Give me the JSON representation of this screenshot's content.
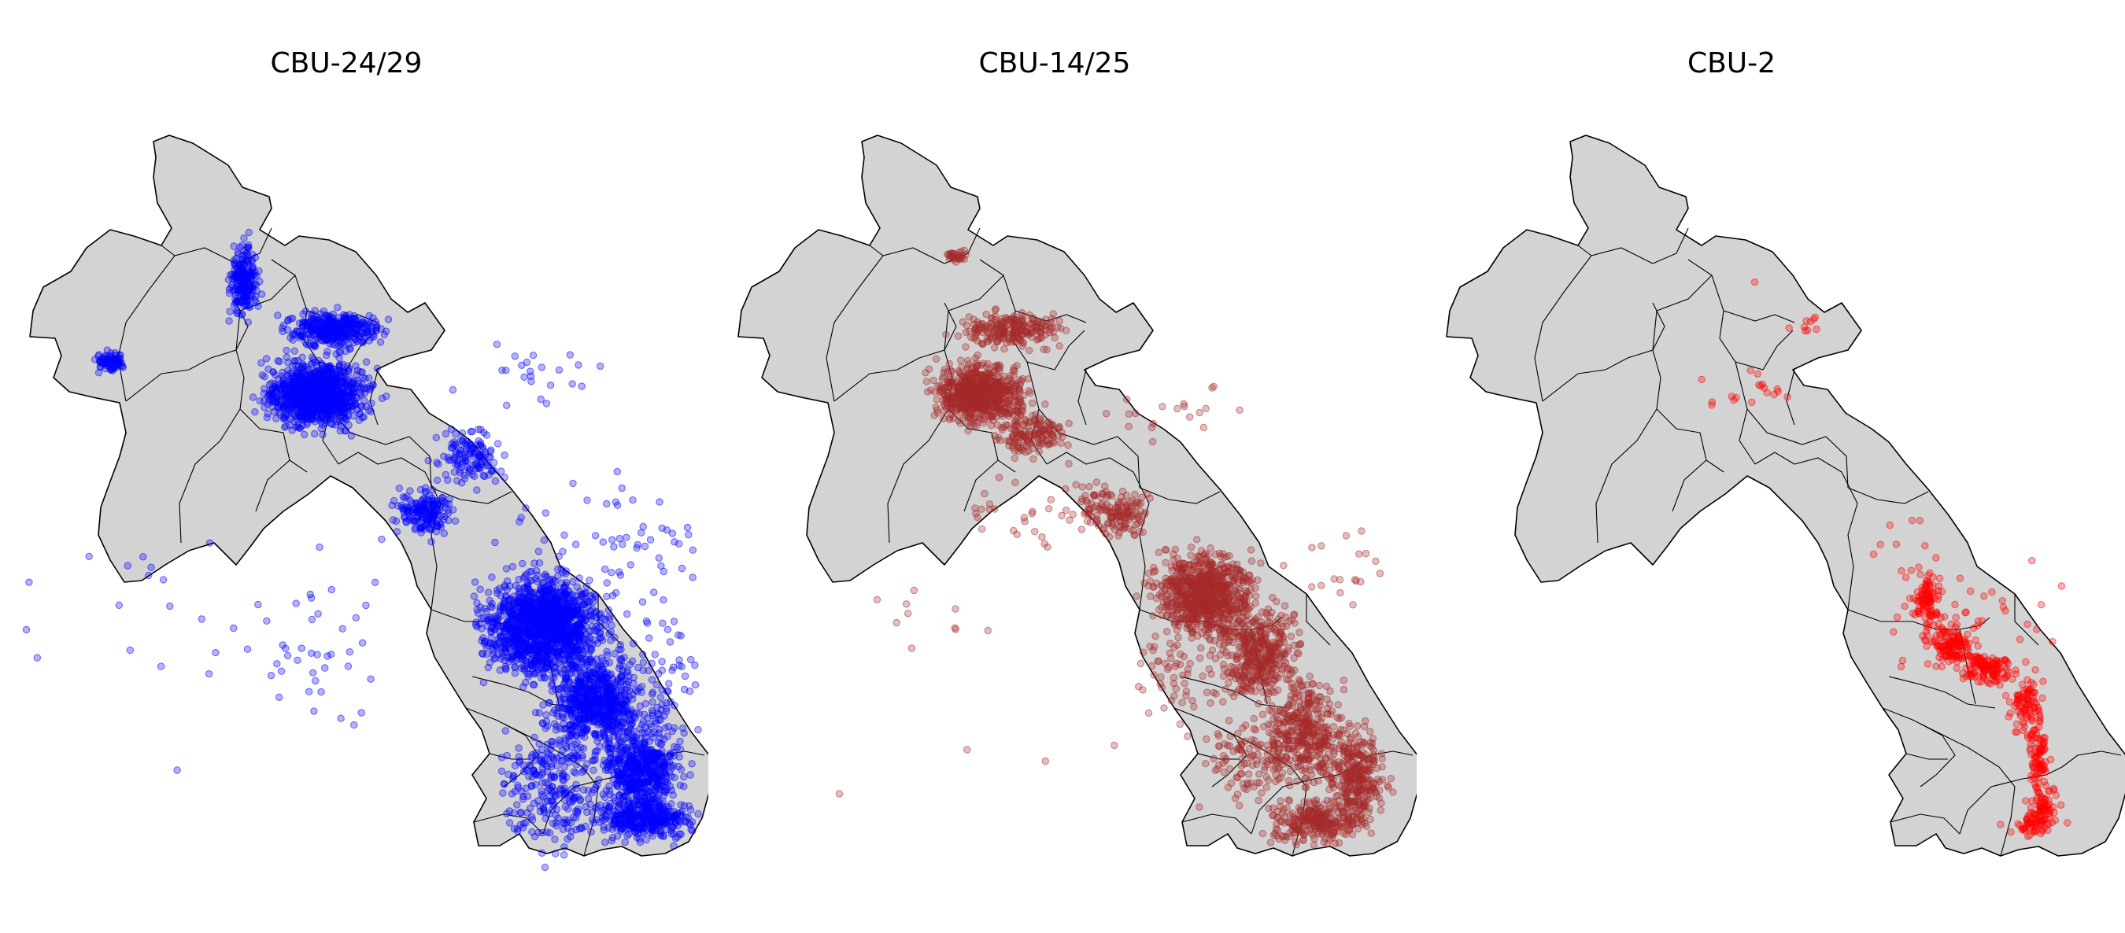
{
  "figure": {
    "background": "#ffffff",
    "land_fill": "#d3d3d3",
    "border_color": "#000000"
  },
  "panels": [
    {
      "title": "CBU-24/29",
      "point_color": "#0000ff",
      "density": "very-high"
    },
    {
      "title": "CBU-14/25",
      "point_color": "#a52a2a",
      "density": "high"
    },
    {
      "title": "CBU-2",
      "point_color": "#ff0000",
      "density": "low"
    }
  ]
}
